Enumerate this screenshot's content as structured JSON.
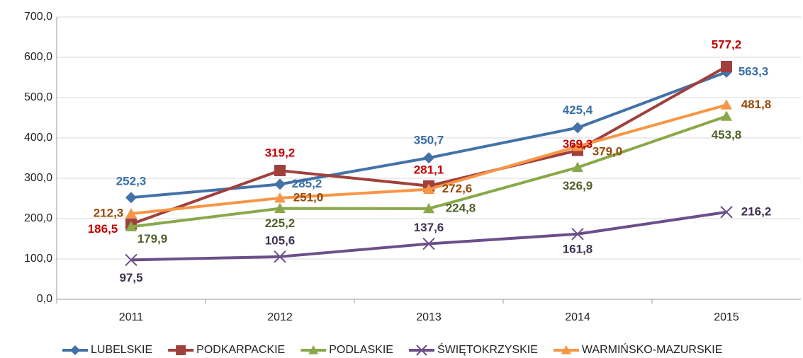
{
  "chart_data": {
    "type": "line",
    "categories": [
      "2011",
      "2012",
      "2013",
      "2014",
      "2015"
    ],
    "series": [
      {
        "name": "LUBELSKIE",
        "color": "#4472a8",
        "label_color": "#3a6ea5",
        "marker": "diamond",
        "values": [
          252.3,
          285.2,
          350.7,
          425.4,
          563.3
        ],
        "value_labels": [
          "252,3",
          "285,2",
          "350,7",
          "425,4",
          "563,3"
        ]
      },
      {
        "name": "PODKARPACKIE",
        "color": "#a0403c",
        "label_color": "#c00000",
        "marker": "square",
        "values": [
          186.5,
          319.2,
          281.1,
          369.3,
          577.2
        ],
        "value_labels": [
          "186,5",
          "319,2",
          "281,1",
          "369,3",
          "577,2"
        ]
      },
      {
        "name": "PODLASKIE",
        "color": "#8aa84a",
        "label_color": "#4f6228",
        "marker": "triangle",
        "values": [
          179.9,
          225.2,
          224.8,
          326.9,
          453.8
        ],
        "value_labels": [
          "179,9",
          "225,2",
          "224,8",
          "326,9",
          "453,8"
        ]
      },
      {
        "name": "ŚWIĘTOKRZYSKIE",
        "color": "#6b4f8a",
        "label_color": "#3f3151",
        "marker": "x",
        "values": [
          97.5,
          105.6,
          137.6,
          161.8,
          216.2
        ],
        "value_labels": [
          "97,5",
          "105,6",
          "137,6",
          "161,8",
          "216,2"
        ]
      },
      {
        "name": "WARMIŃSKO-MAZURSKIE",
        "color": "#f79646",
        "label_color": "#984807",
        "marker": "triangle",
        "values": [
          212.3,
          251.0,
          272.6,
          379.0,
          481.8
        ],
        "value_labels": [
          "212,3",
          "251,0",
          "272,6",
          "379,0",
          "481,8"
        ]
      }
    ],
    "ylim": [
      0,
      700
    ],
    "yticks": [
      {
        "value": 0,
        "label": "0,0"
      },
      {
        "value": 100,
        "label": "100,0"
      },
      {
        "value": 200,
        "label": "200,0"
      },
      {
        "value": 300,
        "label": "300,0"
      },
      {
        "value": 400,
        "label": "400,0"
      },
      {
        "value": 500,
        "label": "500,0"
      },
      {
        "value": 600,
        "label": "600,0"
      },
      {
        "value": 700,
        "label": "700,0"
      }
    ],
    "grid": true,
    "legend": "bottom"
  }
}
